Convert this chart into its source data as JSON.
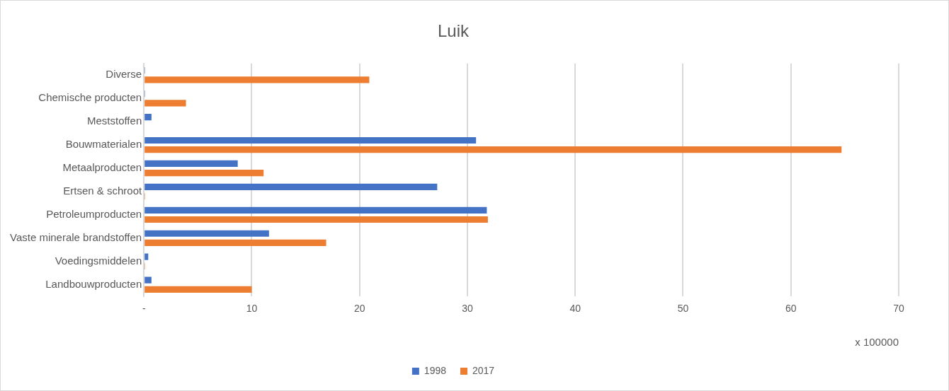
{
  "chart_data": {
    "type": "bar",
    "orientation": "horizontal",
    "title": "Luik",
    "xlabel": "x 100000",
    "categories": [
      "Diverse",
      "Chemische producten",
      "Meststoffen",
      "Bouwmaterialen",
      "Metaalproducten",
      "Ertsen & schroot",
      "Petroleumproducten",
      "Vaste minerale brandstoffen",
      "Voedingsmiddelen",
      "Landbouwproducten"
    ],
    "series": [
      {
        "name": "1998",
        "color": "#4472c4",
        "values": [
          0.1,
          0.1,
          0.7,
          30.8,
          8.7,
          27.2,
          31.8,
          11.6,
          0.4,
          0.7
        ]
      },
      {
        "name": "2017",
        "color": "#ed7d31",
        "values": [
          20.9,
          3.9,
          0,
          64.7,
          11.1,
          0.1,
          31.9,
          16.9,
          0.1,
          10.0
        ]
      }
    ],
    "xlim": [
      0,
      70
    ],
    "xticks": [
      {
        "value": 0,
        "label": "-"
      },
      10,
      20,
      30,
      40,
      50,
      60,
      70
    ],
    "grid": "x",
    "legend": "bottom"
  }
}
